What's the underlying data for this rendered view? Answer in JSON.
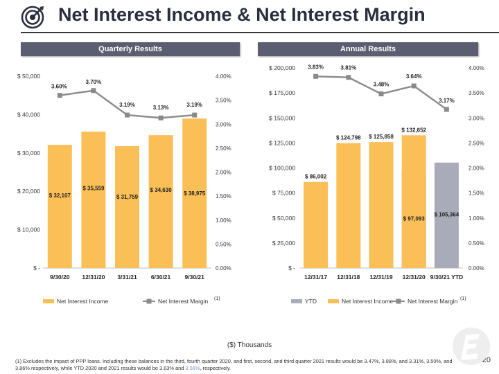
{
  "header": {
    "title": "Net Interest Income & Net Interest Margin"
  },
  "banners": {
    "quarterly": "Quarterly Results",
    "annual": "Annual Results"
  },
  "chart_data": [
    {
      "type": "bar",
      "title": "Quarterly Results",
      "categories": [
        "9/30/20",
        "12/31/20",
        "3/31/21",
        "6/30/21",
        "9/30/21"
      ],
      "series": [
        {
          "name": "Net Interest Income",
          "type": "bar",
          "axis": "left",
          "color": "#fbbf57",
          "values": [
            32107,
            35559,
            31759,
            34630,
            38975
          ],
          "labels": [
            "$ 32,107",
            "$ 35,559",
            "$ 31,759",
            "$ 34,630",
            "$ 38,975"
          ]
        },
        {
          "name": "Net Interest Margin",
          "type": "line",
          "axis": "right",
          "color": "#8a8a8a",
          "values": [
            3.6,
            3.7,
            3.19,
            3.13,
            3.19
          ],
          "labels": [
            "3.60%",
            "3.70%",
            "3.19%",
            "3.13%",
            "3.19%"
          ]
        }
      ],
      "y_left": {
        "ticks": [
          "$ -",
          "$ 10,000",
          "$ 20,000",
          "$ 30,000",
          "$ 40,000",
          "$ 50,000"
        ],
        "ylim": [
          0,
          50000
        ]
      },
      "y_right": {
        "ticks": [
          "0.00%",
          "0.50%",
          "1.00%",
          "1.50%",
          "2.00%",
          "2.50%",
          "3.00%",
          "3.50%",
          "4.00%"
        ],
        "ylim": [
          0,
          4.0
        ]
      },
      "legend": [
        "Net Interest Income",
        "Net Interest Margin"
      ],
      "legend_note": "(1)"
    },
    {
      "type": "bar",
      "title": "Annual Results",
      "categories": [
        "12/31/17",
        "12/31/18",
        "12/31/19",
        "12/31/20",
        "9/30/21 YTD"
      ],
      "series": [
        {
          "name": "YTD",
          "type": "bar",
          "axis": "left",
          "color": "#a9abb8",
          "values": [
            null,
            null,
            null,
            97093,
            105364
          ],
          "labels": [
            "",
            "",
            "",
            "$ 97,093",
            "$ 105,364"
          ]
        },
        {
          "name": "Net Interest Income",
          "type": "bar",
          "axis": "left",
          "color": "#fbbf57",
          "values": [
            86002,
            124798,
            125858,
            132652,
            null
          ],
          "labels": [
            "$ 86,002",
            "$ 124,798",
            "$ 125,858",
            "$ 132,652",
            ""
          ]
        },
        {
          "name": "Net Interest Margin",
          "type": "line",
          "axis": "right",
          "color": "#8a8a8a",
          "values": [
            3.83,
            3.81,
            3.48,
            3.64,
            3.17
          ],
          "labels": [
            "3.83%",
            "3.81%",
            "3.48%",
            "3.64%",
            "3.17%"
          ]
        }
      ],
      "y_left": {
        "ticks": [
          "$ -",
          "$ 25,000",
          "$ 50,000",
          "$ 75,000",
          "$ 100,000",
          "$ 125,000",
          "$ 150,000",
          "$ 175,000",
          "$ 200,000"
        ],
        "ylim": [
          0,
          200000
        ]
      },
      "y_right": {
        "ticks": [
          "0.00%",
          "0.50%",
          "1.00%",
          "1.50%",
          "2.00%",
          "2.50%",
          "3.00%",
          "3.50%",
          "4.00%"
        ],
        "ylim": [
          0,
          4.0
        ]
      },
      "legend": [
        "YTD",
        "Net Interest Income",
        "Net Interest Margin"
      ],
      "legend_note": "(1)"
    }
  ],
  "footer": {
    "units": "($) Thousands",
    "footnote_main": "(1) Excludes the impact of PPP loans.  Including these balances in the third, fourth quarter 2020,  and first, second, and third quarter 2021 results would be 3.47%, 3.88%, and 3.31%, 3.50%, and 3.86% respectively, while YTD 2020 and 2021 results would be 3.63% and ",
    "footnote_hl": "3.56%",
    "footnote_end": ", respectively.",
    "page_number": "20"
  }
}
